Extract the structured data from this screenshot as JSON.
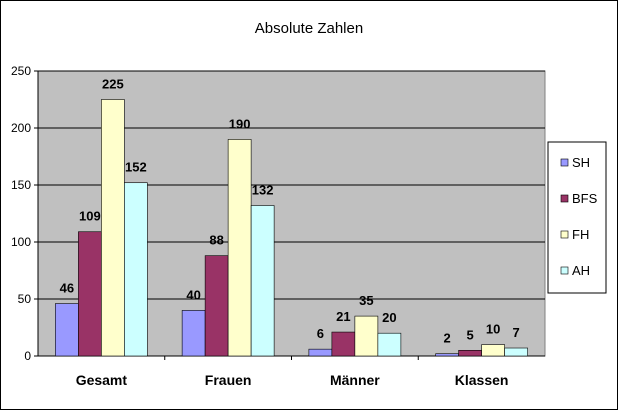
{
  "chart_data": {
    "type": "bar",
    "title": "Absolute Zahlen",
    "categories": [
      "Gesamt",
      "Frauen",
      "Männer",
      "Klassen"
    ],
    "series": [
      {
        "name": "SH",
        "color": "#9999ff",
        "values": [
          46,
          40,
          6,
          2
        ]
      },
      {
        "name": "BFS",
        "color": "#993366",
        "values": [
          109,
          88,
          21,
          5
        ]
      },
      {
        "name": "FH",
        "color": "#ffffcc",
        "values": [
          225,
          190,
          35,
          10
        ]
      },
      {
        "name": "AH",
        "color": "#ccffff",
        "values": [
          152,
          132,
          20,
          7
        ]
      }
    ],
    "ylim": [
      0,
      250
    ],
    "yticks": [
      0,
      50,
      100,
      150,
      200,
      250
    ],
    "grid": true,
    "plot_background": "#c0c0c0",
    "legend": "right"
  }
}
